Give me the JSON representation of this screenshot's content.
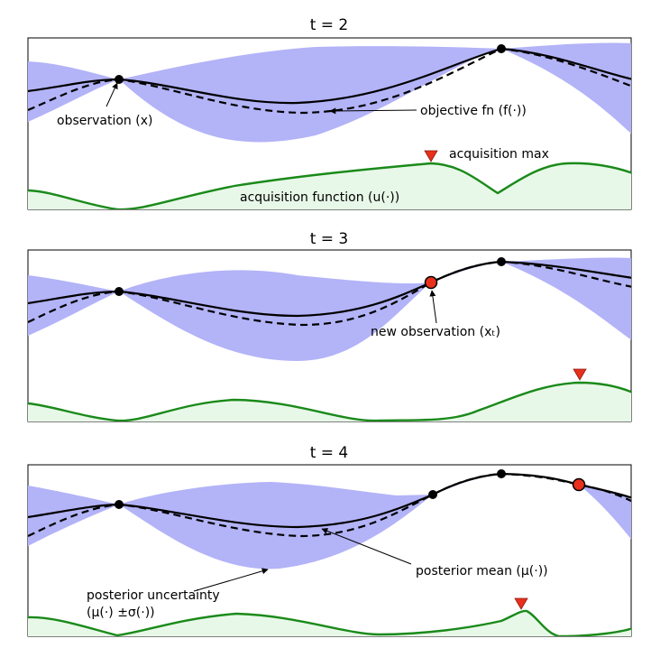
{
  "panels": [
    {
      "title": "t = 2",
      "annotations": [
        {
          "id": "observation",
          "text": "observation (x)"
        },
        {
          "id": "objective",
          "text": "objective fn (f(·))"
        },
        {
          "id": "acq-max",
          "text": "acquisition max"
        },
        {
          "id": "acq-fn",
          "text": "acquisition function (u(·))"
        }
      ]
    },
    {
      "title": "t = 3",
      "annotations": [
        {
          "id": "new-observation",
          "text": "new observation (xₜ)"
        }
      ]
    },
    {
      "title": "t = 4",
      "annotations": [
        {
          "id": "posterior-mean",
          "text": "posterior mean (μ(·))"
        },
        {
          "id": "posterior-uncertainty-1",
          "text": "posterior uncertainty"
        },
        {
          "id": "posterior-uncertainty-2",
          "text": "(μ(·) ±σ(·))"
        }
      ]
    }
  ],
  "colors": {
    "uncertainty_band": "#b3b3f8",
    "acquisition_line": "#1a8a1a",
    "acquisition_fill": "#e8f8e8",
    "new_point": "#e8301c",
    "acq_max_marker": "#e8301c"
  }
}
